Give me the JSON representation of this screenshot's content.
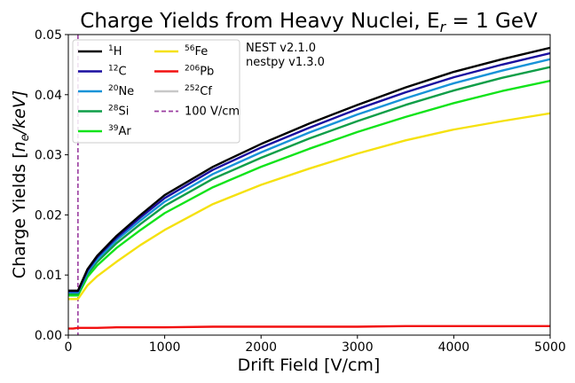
{
  "chart_data": {
    "type": "line",
    "title": "Charge Yields from Heavy Nuclei, E",
    "title_sub": "r",
    "title_tail": " = 1 GeV",
    "xlabel": "Drift Field [V/cm]",
    "ylabel_main": "Charge Yields [",
    "ylabel_n": "n",
    "ylabel_sub": "e",
    "ylabel_tail": "/keV]",
    "xlim": [
      0,
      5000
    ],
    "ylim": [
      0,
      0.05
    ],
    "xticks": [
      0,
      1000,
      2000,
      3000,
      4000,
      5000
    ],
    "xtick_labels": [
      "0",
      "1000",
      "2000",
      "3000",
      "4000",
      "5000"
    ],
    "yticks": [
      0,
      0.01,
      0.02,
      0.03,
      0.04,
      0.05
    ],
    "ytick_labels": [
      "0.00",
      "0.01",
      "0.02",
      "0.03",
      "0.04",
      "0.05"
    ],
    "grid": false,
    "annotation": [
      "NEST v2.1.0",
      "nestpy v1.3.0"
    ],
    "vline": {
      "x": 100,
      "label": "100 V/cm",
      "color": "#9b3da0",
      "style": "dashed"
    },
    "legend_position": "top-left",
    "x": [
      0,
      50,
      100,
      200,
      300,
      500,
      750,
      1000,
      1500,
      2000,
      2500,
      3000,
      3500,
      4000,
      4500,
      5000
    ],
    "series": [
      {
        "name": "H",
        "mass": "1",
        "color": "#000000",
        "values": [
          0.0074,
          0.0074,
          0.0074,
          0.011,
          0.0132,
          0.0165,
          0.02,
          0.0233,
          0.028,
          0.0318,
          0.0352,
          0.0383,
          0.0412,
          0.0438,
          0.0459,
          0.0478
        ]
      },
      {
        "name": "C",
        "mass": "12",
        "color": "#1a0fa0",
        "values": [
          0.0073,
          0.0073,
          0.0073,
          0.0108,
          0.013,
          0.0162,
          0.0196,
          0.0228,
          0.0275,
          0.0312,
          0.0345,
          0.0376,
          0.0404,
          0.0429,
          0.045,
          0.0469
        ]
      },
      {
        "name": "Ne",
        "mass": "20",
        "color": "#1793d8",
        "values": [
          0.0071,
          0.0071,
          0.0071,
          0.0105,
          0.0126,
          0.0158,
          0.0191,
          0.0222,
          0.0268,
          0.0304,
          0.0337,
          0.0367,
          0.0394,
          0.0419,
          0.044,
          0.0459
        ]
      },
      {
        "name": "Si",
        "mass": "28",
        "color": "#0f9e48",
        "values": [
          0.0069,
          0.0069,
          0.0069,
          0.0102,
          0.0122,
          0.0153,
          0.0185,
          0.0215,
          0.026,
          0.0295,
          0.0327,
          0.0356,
          0.0383,
          0.0407,
          0.0428,
          0.0446
        ]
      },
      {
        "name": "Ar",
        "mass": "39",
        "color": "#11e31a",
        "values": [
          0.0066,
          0.0066,
          0.0066,
          0.0097,
          0.0116,
          0.0145,
          0.0175,
          0.0203,
          0.0246,
          0.028,
          0.031,
          0.0338,
          0.0363,
          0.0386,
          0.0406,
          0.0423
        ]
      },
      {
        "name": "Fe",
        "mass": "56",
        "color": "#f5e10f",
        "values": [
          0.006,
          0.006,
          0.006,
          0.0083,
          0.0098,
          0.0122,
          0.015,
          0.0175,
          0.0218,
          0.025,
          0.0277,
          0.0302,
          0.0324,
          0.0342,
          0.0356,
          0.0369
        ]
      },
      {
        "name": "Pb",
        "mass": "206",
        "color": "#f21010",
        "values": [
          0.0011,
          0.0011,
          0.0012,
          0.0012,
          0.0012,
          0.0013,
          0.0013,
          0.0013,
          0.0014,
          0.0014,
          0.0014,
          0.0014,
          0.0015,
          0.0015,
          0.0015,
          0.0015
        ]
      },
      {
        "name": "Cf",
        "mass": "252",
        "color": "#c8c8c8",
        "values": null
      }
    ],
    "legend": [
      {
        "mass": "1",
        "name": "H",
        "color": "#000000",
        "style": "solid"
      },
      {
        "mass": "12",
        "name": "C",
        "color": "#1a0fa0",
        "style": "solid"
      },
      {
        "mass": "20",
        "name": "Ne",
        "color": "#1793d8",
        "style": "solid"
      },
      {
        "mass": "28",
        "name": "Si",
        "color": "#0f9e48",
        "style": "solid"
      },
      {
        "mass": "39",
        "name": "Ar",
        "color": "#11e31a",
        "style": "solid"
      },
      {
        "mass": "56",
        "name": "Fe",
        "color": "#f5e10f",
        "style": "solid"
      },
      {
        "mass": "206",
        "name": "Pb",
        "color": "#f21010",
        "style": "solid"
      },
      {
        "mass": "252",
        "name": "Cf",
        "color": "#c8c8c8",
        "style": "solid"
      },
      {
        "mass": "",
        "name": "100 V/cm",
        "color": "#9b3da0",
        "style": "dashed"
      }
    ]
  }
}
